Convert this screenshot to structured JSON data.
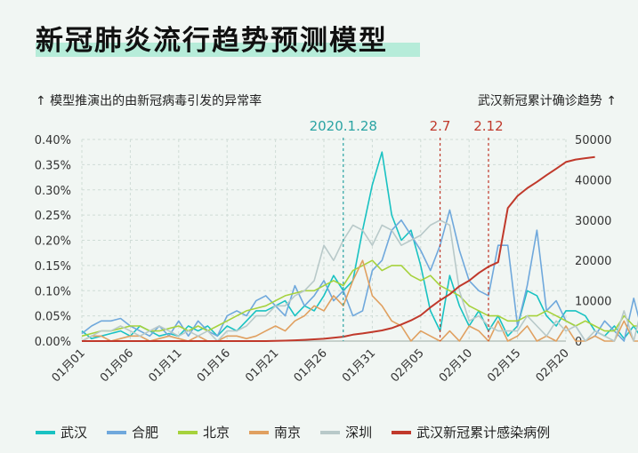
{
  "title": "新冠肺炎流行趋势预测模型",
  "left_axis_label": "↑ 模型推演出的由新冠病毒引发的异常率",
  "right_axis_label": "武汉新冠累计确诊趋势 ↑",
  "chart_data": {
    "type": "line",
    "x_ticks": [
      "01月01",
      "01月06",
      "01月11",
      "01月16",
      "01月21",
      "01月26",
      "01月31",
      "02月05",
      "02月10",
      "02月15",
      "02月20"
    ],
    "y_left_ticks": [
      "0.00%",
      "0.05%",
      "0.10%",
      "0.15%",
      "0.20%",
      "0.25%",
      "0.30%",
      "0.35%",
      "0.40%"
    ],
    "y_left_lim": [
      0,
      0.4
    ],
    "y_right_ticks": [
      "0",
      "10000",
      "20000",
      "30000",
      "40000",
      "50000"
    ],
    "y_right_lim": [
      0,
      50000
    ],
    "annotations": [
      {
        "label": "2020.1.28",
        "day": 28,
        "color": "#2aa3a3"
      },
      {
        "label": "2.7",
        "day": 38,
        "color": "#c0392b"
      },
      {
        "label": "2.12",
        "day": 43,
        "color": "#c0392b"
      }
    ],
    "series": [
      {
        "name": "武汉",
        "color": "#19c2c2",
        "axis": "left",
        "values": [
          0.02,
          0.005,
          0.01,
          0.015,
          0.02,
          0.01,
          0.03,
          0.02,
          0.01,
          0.015,
          0.01,
          0.03,
          0.02,
          0.03,
          0.01,
          0.03,
          0.02,
          0.04,
          0.06,
          0.06,
          0.07,
          0.08,
          0.05,
          0.07,
          0.06,
          0.09,
          0.13,
          0.1,
          0.12,
          0.22,
          0.31,
          0.375,
          0.25,
          0.2,
          0.22,
          0.15,
          0.06,
          0.02,
          0.13,
          0.07,
          0.03,
          0.06,
          0.02,
          0.05,
          0.01,
          0.03,
          0.1,
          0.09,
          0.05,
          0.03,
          0.06,
          0.06,
          0.05,
          0.02,
          0.01,
          0.03,
          0.005,
          0.03,
          0.0
        ]
      },
      {
        "name": "合肥",
        "color": "#6fa8dc",
        "axis": "left",
        "values": [
          0.015,
          0.03,
          0.04,
          0.04,
          0.045,
          0.03,
          0.02,
          0.01,
          0.03,
          0.01,
          0.04,
          0.01,
          0.04,
          0.02,
          0.01,
          0.05,
          0.06,
          0.05,
          0.08,
          0.09,
          0.07,
          0.05,
          0.11,
          0.07,
          0.09,
          0.12,
          0.08,
          0.1,
          0.05,
          0.06,
          0.14,
          0.16,
          0.22,
          0.24,
          0.21,
          0.18,
          0.14,
          0.19,
          0.26,
          0.18,
          0.12,
          0.1,
          0.09,
          0.19,
          0.19,
          0.03,
          0.11,
          0.22,
          0.06,
          0.08,
          0.04,
          0.03,
          0.0,
          0.01,
          0.04,
          0.02,
          0.0,
          0.085,
          0.01
        ]
      },
      {
        "name": "北京",
        "color": "#a6d23c",
        "axis": "left",
        "values": [
          0.01,
          0.015,
          0.02,
          0.02,
          0.025,
          0.03,
          0.03,
          0.02,
          0.02,
          0.025,
          0.03,
          0.02,
          0.03,
          0.02,
          0.03,
          0.04,
          0.05,
          0.06,
          0.065,
          0.07,
          0.08,
          0.09,
          0.095,
          0.1,
          0.1,
          0.11,
          0.12,
          0.11,
          0.14,
          0.15,
          0.16,
          0.14,
          0.15,
          0.15,
          0.13,
          0.12,
          0.13,
          0.11,
          0.1,
          0.09,
          0.07,
          0.06,
          0.05,
          0.05,
          0.04,
          0.04,
          0.05,
          0.05,
          0.06,
          0.05,
          0.04,
          0.03,
          0.04,
          0.03,
          0.02,
          0.02,
          0.05,
          0.03,
          0.03
        ]
      },
      {
        "name": "南京",
        "color": "#e0a060",
        "axis": "left",
        "values": [
          0.0,
          0.01,
          0.01,
          0.0,
          0.005,
          0.01,
          0.01,
          0.0,
          0.005,
          0.01,
          0.005,
          0.0,
          0.01,
          0.0,
          0.0,
          0.01,
          0.01,
          0.005,
          0.01,
          0.02,
          0.03,
          0.02,
          0.04,
          0.05,
          0.07,
          0.06,
          0.09,
          0.07,
          0.12,
          0.16,
          0.09,
          0.07,
          0.04,
          0.03,
          0.0,
          0.02,
          0.01,
          0.0,
          0.02,
          0.0,
          0.03,
          0.02,
          0.0,
          0.04,
          0.0,
          0.01,
          0.03,
          0.0,
          0.01,
          0.0,
          0.03,
          0.0,
          0.0,
          0.01,
          0.0,
          0.0,
          0.04,
          0.0,
          0.0
        ]
      },
      {
        "name": "深圳",
        "color": "#b8c9c9",
        "axis": "left",
        "values": [
          0.0,
          0.01,
          0.02,
          0.02,
          0.03,
          0.02,
          0.01,
          0.02,
          0.03,
          0.02,
          0.01,
          0.02,
          0.01,
          0.02,
          0.0,
          0.02,
          0.02,
          0.03,
          0.05,
          0.05,
          0.07,
          0.07,
          0.09,
          0.1,
          0.12,
          0.19,
          0.16,
          0.2,
          0.23,
          0.22,
          0.19,
          0.23,
          0.22,
          0.19,
          0.2,
          0.21,
          0.23,
          0.24,
          0.23,
          0.1,
          0.04,
          0.05,
          0.03,
          0.02,
          0.02,
          0.02,
          0.05,
          0.03,
          0.01,
          0.04,
          0.02,
          0.03,
          0.0,
          0.02,
          0.01,
          0.0,
          0.06,
          0.0,
          0.08
        ]
      },
      {
        "name": "武汉新冠累计感染病例",
        "color": "#c0392b",
        "axis": "right",
        "values": [
          0,
          0,
          0,
          0,
          0,
          0,
          0,
          0,
          0,
          0,
          0,
          0,
          0,
          0,
          0,
          0,
          0,
          0,
          0,
          0,
          41,
          100,
          200,
          300,
          440,
          571,
          830,
          1072,
          1590,
          1905,
          2261,
          2639,
          3215,
          4109,
          5142,
          6384,
          8351,
          10117,
          11618,
          13603,
          14982,
          16902,
          18454,
          19558,
          32994,
          35991,
          37914,
          39462,
          41152,
          42752,
          44412,
          45027,
          45346,
          45660
        ]
      }
    ]
  }
}
